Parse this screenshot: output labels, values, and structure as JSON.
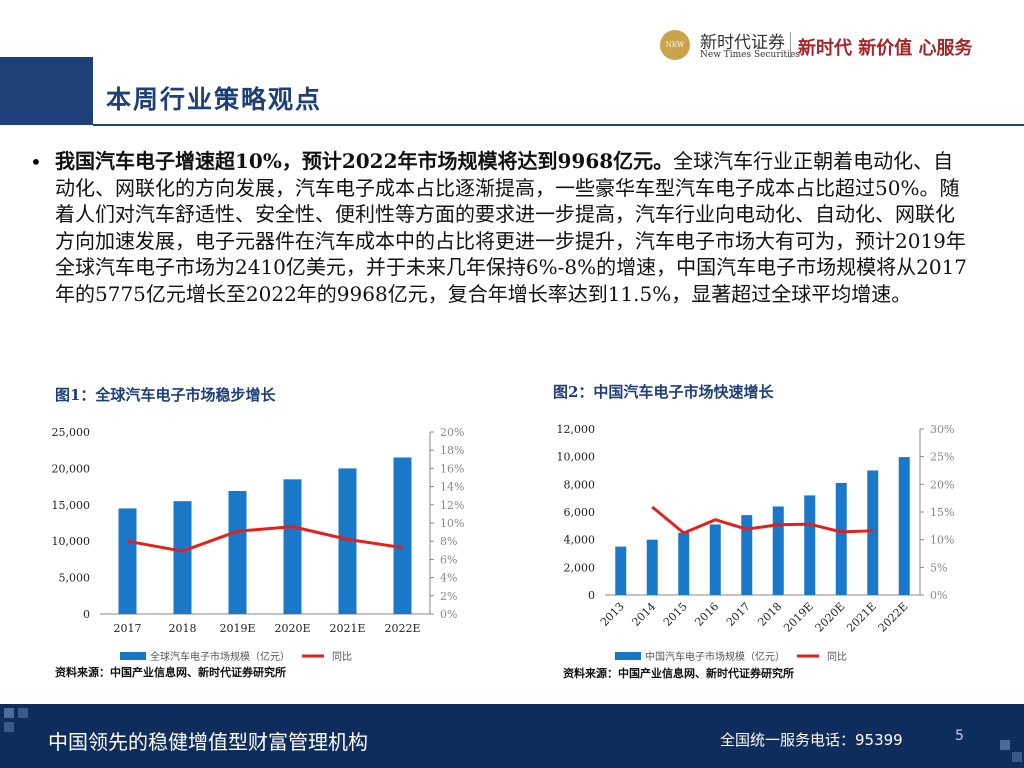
{
  "header": {
    "logo_mark": "NEW TIMES",
    "company": "新时代证券",
    "company_en": "New Times Securities",
    "slogan": "新时代 新价值 心服务"
  },
  "section_title": "本周行业策略观点",
  "bullet": {
    "lead": "我国汽车电子增速超10%，预计2022年市场规模将达到9968亿元。",
    "body": "全球汽车行业正朝着电动化、自动化、网联化的方向发展，汽车电子成本占比逐渐提高，一些豪华车型汽车电子成本占比超过50%。随着人们对汽车舒适性、安全性、便利性等方面的要求进一步提高，汽车行业向电动化、自动化、网联化方向加速发展，电子元器件在汽车成本中的占比将更进一步提升，汽车电子市场大有可为，预计2019年全球汽车电子市场为2410亿美元，并于未来几年保持6%-8%的增速，中国汽车电子市场规模将从2017年的5775亿元增长至2022年的9968亿元，复合年增长率达到11.5%，显著超过全球平均增速。"
  },
  "chart_data": [
    {
      "type": "bar",
      "title": "图1：全球汽车电子市场稳步增长",
      "source": "资料来源：中国产业信息网、新时代证券研究所",
      "categories": [
        "2017",
        "2018",
        "2019E",
        "2020E",
        "2021E",
        "2022E"
      ],
      "series": [
        {
          "name": "全球汽车电子市场规模（亿元）",
          "color": "#1a78c8",
          "values": [
            14500,
            15500,
            16900,
            18500,
            20000,
            21500
          ]
        },
        {
          "name": "同比",
          "color": "#e3211c",
          "type": "line",
          "axis": "y2",
          "values": [
            8.0,
            6.9,
            9.1,
            9.6,
            8.2,
            7.3
          ]
        }
      ],
      "ylim": [
        0,
        25000
      ],
      "yticks": [
        0,
        {
          "value": 5000,
          "label": "5,000"
        },
        {
          "value": 10000,
          "label": "10,000"
        },
        {
          "value": 15000,
          "label": "15,000"
        },
        {
          "value": 20000,
          "label": "20,000"
        },
        {
          "value": 25000,
          "label": "25,000"
        }
      ],
      "y2lim": [
        0,
        20
      ],
      "y2ticks": [
        {
          "value": 0,
          "label": "0%"
        },
        {
          "value": 2,
          "label": "2%"
        },
        {
          "value": 4,
          "label": "4%"
        },
        {
          "value": 6,
          "label": "6%"
        },
        {
          "value": 8,
          "label": "8%"
        },
        {
          "value": 10,
          "label": "10%"
        },
        {
          "value": 12,
          "label": "12%"
        },
        {
          "value": 14,
          "label": "14%"
        },
        {
          "value": 16,
          "label": "16%"
        },
        {
          "value": 18,
          "label": "18%"
        },
        {
          "value": 20,
          "label": "20%"
        }
      ],
      "legend": "bottom"
    },
    {
      "type": "bar",
      "title": "图2：中国汽车电子市场快速增长",
      "source": "资料来源：中国产业信息网、新时代证券研究所",
      "categories": [
        "2013",
        "2014",
        "2015",
        "2016",
        "2017",
        "2018",
        "2019E",
        "2020E",
        "2021E",
        "2022E"
      ],
      "series": [
        {
          "name": "中国汽车电子市场规模（亿元）",
          "color": "#1a78c8",
          "values": [
            3500,
            4000,
            4500,
            5100,
            5775,
            6400,
            7200,
            8100,
            9000,
            9968
          ]
        },
        {
          "name": "同比",
          "color": "#e3211c",
          "type": "line",
          "axis": "y2",
          "values": [
            null,
            15.9,
            11.2,
            13.6,
            11.9,
            12.7,
            12.8,
            11.4,
            11.6,
            null
          ]
        }
      ],
      "ylim": [
        0,
        12000
      ],
      "yticks": [
        0,
        {
          "value": 2000,
          "label": "2,000"
        },
        {
          "value": 4000,
          "label": "4,000"
        },
        {
          "value": 6000,
          "label": "6,000"
        },
        {
          "value": 8000,
          "label": "8,000"
        },
        {
          "value": 10000,
          "label": "10,000"
        },
        {
          "value": 12000,
          "label": "12,000"
        }
      ],
      "y2lim": [
        0,
        30
      ],
      "y2ticks": [
        {
          "value": 0,
          "label": "0%"
        },
        {
          "value": 5,
          "label": "5%"
        },
        {
          "value": 10,
          "label": "10%"
        },
        {
          "value": 15,
          "label": "15%"
        },
        {
          "value": 20,
          "label": "20%"
        },
        {
          "value": 25,
          "label": "25%"
        },
        {
          "value": 30,
          "label": "30%"
        }
      ],
      "rotate_x_labels": true,
      "legend": "bottom"
    }
  ],
  "footer": {
    "motto": "中国领先的稳健增值型财富管理机构",
    "hotline": "全国统一服务电话：95399",
    "page": "5"
  }
}
